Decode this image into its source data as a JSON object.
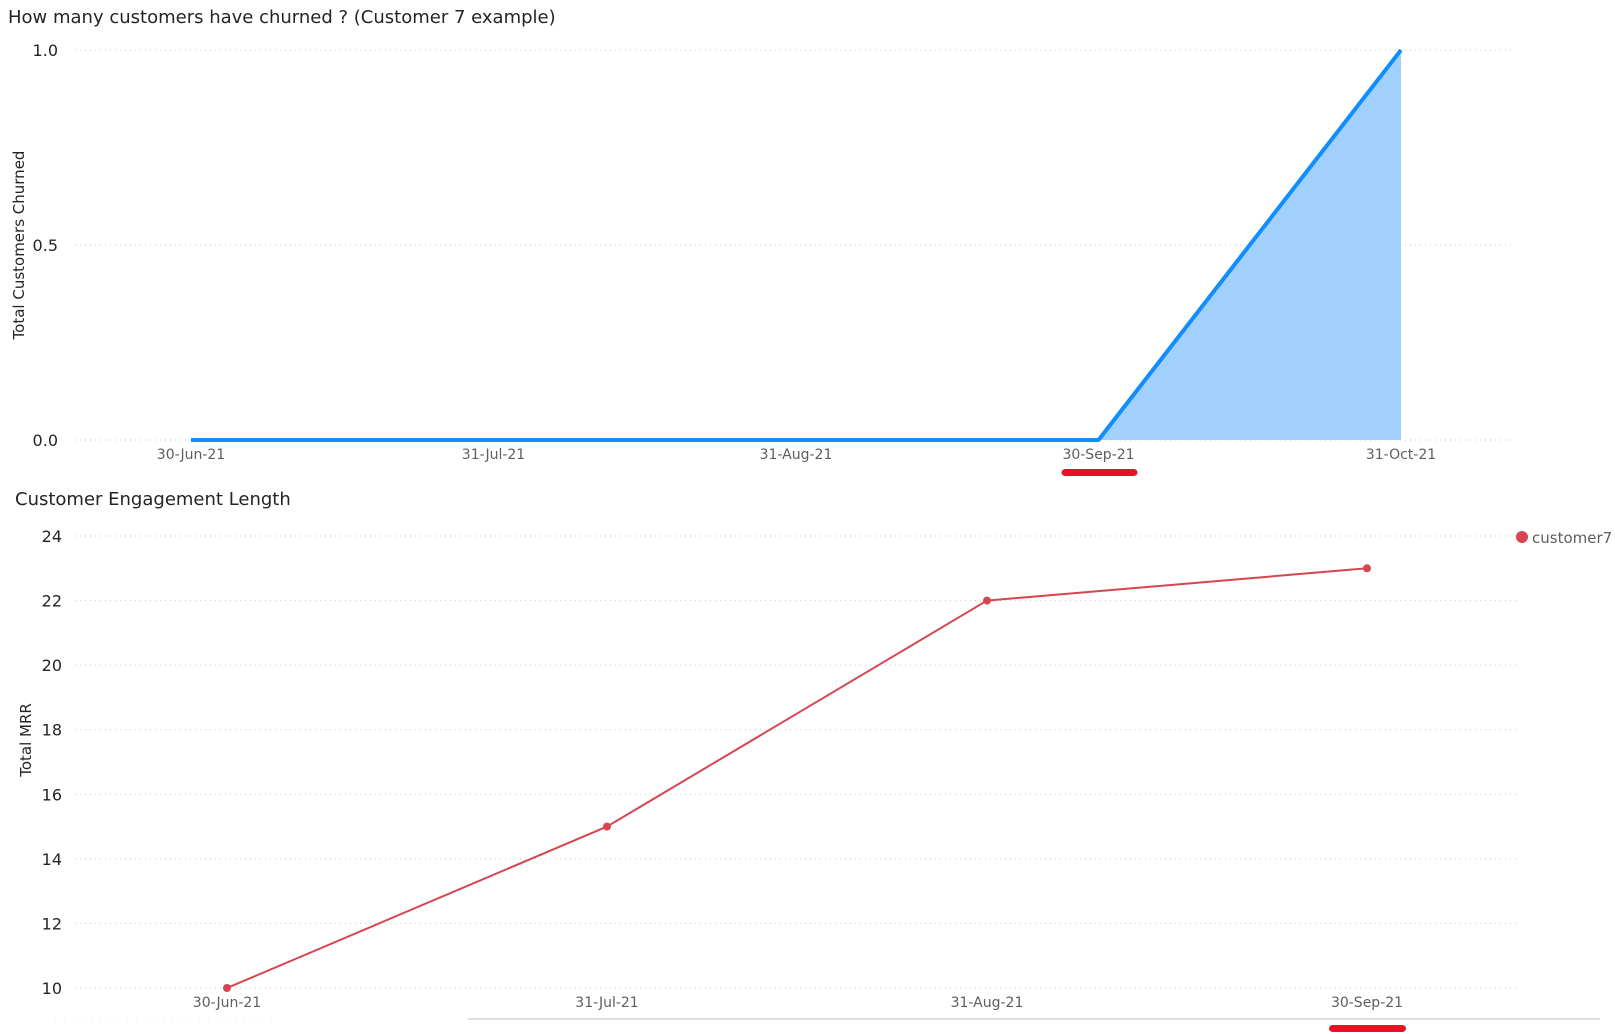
{
  "chart_data": [
    {
      "type": "area",
      "title": "How many customers have churned ? (Customer 7 example)",
      "xlabel": "",
      "ylabel": "Total Customers Churned",
      "x": [
        "30-Jun-21",
        "31-Jul-21",
        "31-Aug-21",
        "30-Sep-21",
        "31-Oct-21"
      ],
      "series": [
        {
          "values": [
            0,
            0,
            0,
            0,
            1
          ],
          "color": "#118dff",
          "fill": "#a0d0fb"
        }
      ],
      "yticks": [
        "0.0",
        "0.5",
        "1.0"
      ],
      "ylim": [
        0,
        1
      ],
      "grid": true,
      "highlight": {
        "x": "30-Sep-21",
        "color": "#e81123"
      }
    },
    {
      "type": "line",
      "title": "Customer Engagement Length",
      "xlabel": "",
      "ylabel": "Total MRR",
      "x": [
        "30-Jun-21",
        "31-Jul-21",
        "31-Aug-21",
        "30-Sep-21"
      ],
      "series": [
        {
          "name": "customer7",
          "values": [
            10,
            15,
            22,
            23
          ],
          "color": "#d64550"
        }
      ],
      "yticks": [
        "10",
        "12",
        "14",
        "16",
        "18",
        "20",
        "22",
        "24"
      ],
      "ylim": [
        10,
        24
      ],
      "grid": true,
      "legend": "top-right",
      "highlight": {
        "x": "30-Sep-21",
        "color": "#e81123"
      }
    }
  ]
}
